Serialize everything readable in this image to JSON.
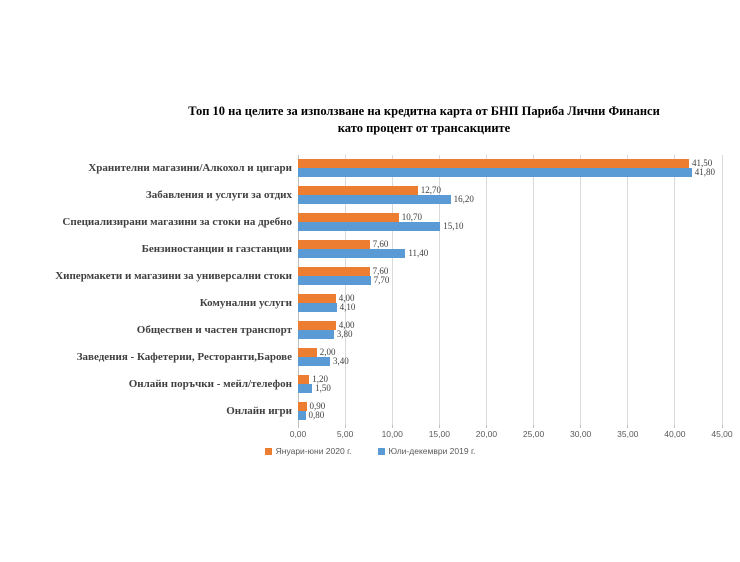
{
  "title": {
    "line1": "Топ 10 на целите за използване на кредитна карта от БНП Париба Лични Финанси",
    "line2": "като процент от трансакциите"
  },
  "chart_data": {
    "type": "bar",
    "orientation": "horizontal",
    "title": "Топ 10 на целите за използване на кредитна карта от БНП Париба Лични Финанси като процент от трансакциите",
    "categories": [
      "Хранителни магазини/Алкохол и цигари",
      "Забавления и услуги за отдих",
      "Специализирани магазини за стоки на дребно",
      "Бензиностанции и газстанции",
      "Хипермакети и магазини за универсални стоки",
      "Комунални услуги",
      "Обществен и частен транспорт",
      "Заведения - Кафетерии, Ресторанти,Барове",
      "Онлайн поръчки - мейл/телефон",
      "Онлайн игри"
    ],
    "series": [
      {
        "name": "Януари-юни 2020 г.",
        "color": "#ED7D31",
        "values": [
          41.5,
          12.7,
          10.7,
          7.6,
          7.6,
          4.0,
          4.0,
          2.0,
          1.2,
          0.9
        ],
        "value_labels": [
          "41,50",
          "12,70",
          "10,70",
          "7,60",
          "7,60",
          "4,00",
          "4,00",
          "2,00",
          "1,20",
          "0,90"
        ]
      },
      {
        "name": "Юли-декември 2019 г.",
        "color": "#5B9BD5",
        "values": [
          41.8,
          16.2,
          15.1,
          11.4,
          7.7,
          4.1,
          3.8,
          3.4,
          1.5,
          0.8
        ],
        "value_labels": [
          "41,80",
          "16,20",
          "15,10",
          "11,40",
          "7,70",
          "4,10",
          "3,80",
          "3,40",
          "1,50",
          "0,80"
        ]
      }
    ],
    "xlim": [
      0,
      45
    ],
    "x_tick_step": 5,
    "x_ticks": [
      "0,00",
      "5,00",
      "10,00",
      "15,00",
      "20,00",
      "25,00",
      "30,00",
      "35,00",
      "40,00",
      "45,00"
    ],
    "grid": true,
    "gridline_color": "#d9d9d9",
    "legend_position": "bottom",
    "decimal_separator": ","
  }
}
